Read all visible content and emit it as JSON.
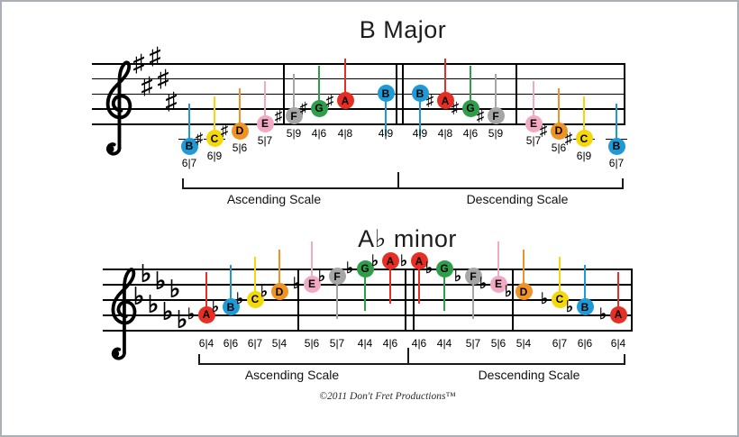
{
  "colors": {
    "A": "#e62e24",
    "B": "#1e9bd7",
    "C": "#f4d80b",
    "D": "#f09325",
    "E": "#f2a9c4",
    "F": "#a6a6a6",
    "G": "#2e9e49"
  },
  "footer": {
    "copyright": "©2011 Don't Fret Productions™"
  },
  "staves": [
    {
      "title": "B Major",
      "key_signature": {
        "type": "sharps",
        "count": 5
      },
      "brackets": {
        "ascending": "Ascending Scale",
        "descending": "Descending Scale"
      },
      "notes": [
        {
          "letter": "B",
          "accidental": "",
          "fret": "6|7"
        },
        {
          "letter": "C",
          "accidental": "♯",
          "fret": "6|9"
        },
        {
          "letter": "D",
          "accidental": "♯",
          "fret": "5|6"
        },
        {
          "letter": "E",
          "accidental": "",
          "fret": "5|7"
        },
        {
          "letter": "F",
          "accidental": "♯",
          "fret": "5|9"
        },
        {
          "letter": "G",
          "accidental": "♯",
          "fret": "4|6"
        },
        {
          "letter": "A",
          "accidental": "♯",
          "fret": "4|8"
        },
        {
          "letter": "B",
          "accidental": "",
          "fret": "4|9"
        },
        {
          "letter": "B",
          "accidental": "",
          "fret": "4|9"
        },
        {
          "letter": "A",
          "accidental": "♯",
          "fret": "4|8"
        },
        {
          "letter": "G",
          "accidental": "♯",
          "fret": "4|6"
        },
        {
          "letter": "F",
          "accidental": "♯",
          "fret": "5|9"
        },
        {
          "letter": "E",
          "accidental": "",
          "fret": "5|7"
        },
        {
          "letter": "D",
          "accidental": "♯",
          "fret": "5|6"
        },
        {
          "letter": "C",
          "accidental": "♯",
          "fret": "6|9"
        },
        {
          "letter": "B",
          "accidental": "",
          "fret": "6|7"
        }
      ]
    },
    {
      "title": "A♭ minor",
      "key_signature": {
        "type": "flats",
        "count": 7
      },
      "brackets": {
        "ascending": "Ascending Scale",
        "descending": "Descending Scale"
      },
      "notes": [
        {
          "letter": "A",
          "accidental": "♭",
          "fret": "6|4"
        },
        {
          "letter": "B",
          "accidental": "♭",
          "fret": "6|6"
        },
        {
          "letter": "C",
          "accidental": "♭",
          "fret": "6|7"
        },
        {
          "letter": "D",
          "accidental": "♭",
          "fret": "5|4"
        },
        {
          "letter": "E",
          "accidental": "♭",
          "fret": "5|6"
        },
        {
          "letter": "F",
          "accidental": "♭",
          "fret": "5|7"
        },
        {
          "letter": "G",
          "accidental": "♭",
          "fret": "4|4"
        },
        {
          "letter": "A",
          "accidental": "♭",
          "fret": "4|6"
        },
        {
          "letter": "A",
          "accidental": "♭",
          "fret": "4|6"
        },
        {
          "letter": "G",
          "accidental": "♭",
          "fret": "4|4"
        },
        {
          "letter": "F",
          "accidental": "♭",
          "fret": "5|7"
        },
        {
          "letter": "E",
          "accidental": "♭",
          "fret": "5|6"
        },
        {
          "letter": "D",
          "accidental": "♭",
          "fret": "5|4"
        },
        {
          "letter": "C",
          "accidental": "♭",
          "fret": "6|7"
        },
        {
          "letter": "B",
          "accidental": "♭",
          "fret": "6|6"
        },
        {
          "letter": "A",
          "accidental": "♭",
          "fret": "6|4"
        }
      ]
    }
  ]
}
